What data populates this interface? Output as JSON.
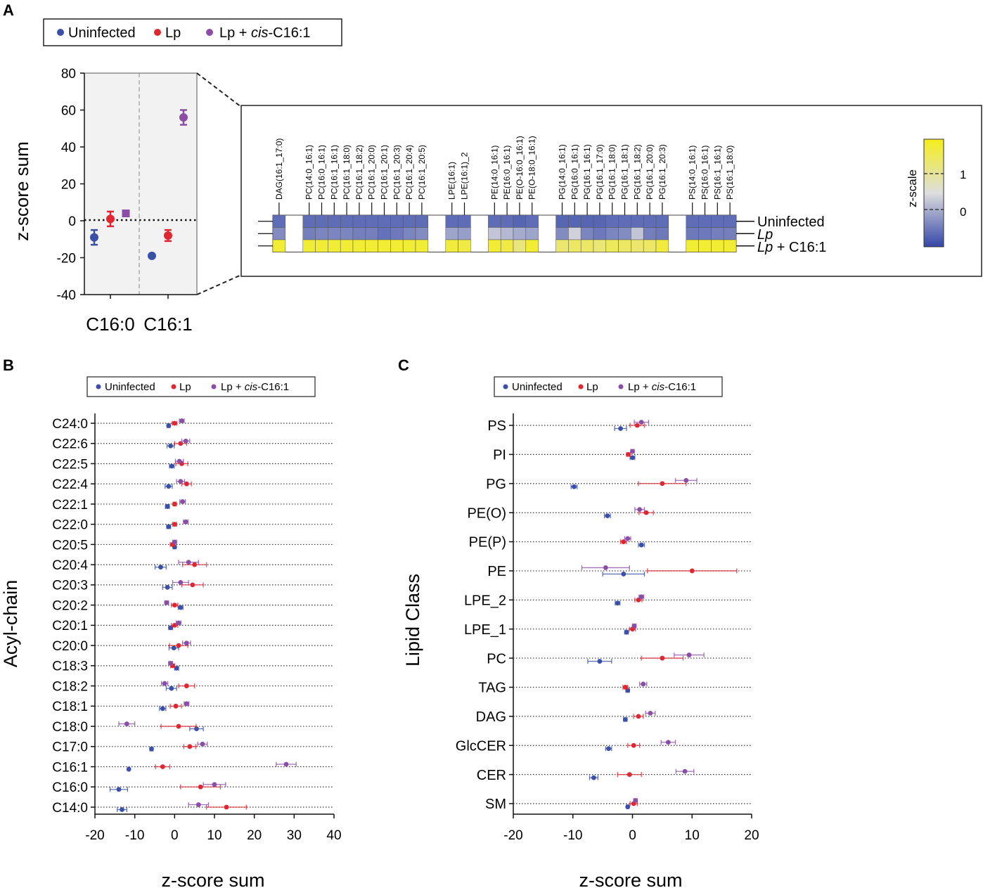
{
  "colors": {
    "uninfected": "#3a50a8",
    "lp": "#e02630",
    "lp_cis": "#8b4ea6",
    "hm_low": "#3446a8",
    "hm_mid": "#dedede",
    "hm_high": "#f4ee1c"
  },
  "panel_labels": {
    "a": "A",
    "b": "B",
    "c": "C"
  },
  "legend": {
    "uninfected": "Uninfected",
    "lp": "Lp",
    "lp_cis_prefix": "Lp + ",
    "lp_cis_italic": "cis",
    "lp_cis_suffix": "-C16:1"
  },
  "chart_data": [
    {
      "id": "A-dot",
      "type": "scatter",
      "ylabel": "z-score sum",
      "ylim": [
        -40,
        80
      ],
      "yticks": [
        "80",
        "60",
        "40",
        "20",
        "0",
        "-20",
        "-40"
      ],
      "categories": [
        "C16:0",
        "C16:1"
      ],
      "series": [
        {
          "name": "Uninfected",
          "values": [
            -9,
            -19
          ],
          "errors": [
            4,
            1
          ]
        },
        {
          "name": "Lp",
          "values": [
            1,
            -8
          ],
          "errors": [
            4,
            3
          ]
        },
        {
          "name": "Lp + cis-C16:1",
          "values": [
            4,
            56
          ],
          "errors": [
            1,
            4
          ],
          "marker": [
            "square",
            "circle"
          ]
        }
      ]
    },
    {
      "id": "A-heatmap",
      "type": "heatmap",
      "rows": [
        "Uninfected",
        "Lp",
        "Lp + C16:1"
      ],
      "row_label_parts": [
        [
          "",
          "Uninfected",
          ""
        ],
        [
          "",
          "Lp",
          ""
        ],
        [
          "",
          "Lp",
          " + C16:1"
        ]
      ],
      "groups": [
        [
          "DAG(16:1_17:0)"
        ],
        [
          "PC(14:0_16:1)",
          "PC(16:0_16:1)",
          "PC(16:1_16:1)",
          "PC(16:1_18:0)",
          "PC(16:1_18:2)",
          "PC(16:1_20:0)",
          "PC(16:1_20:1)",
          "PC(16:1_20:3)",
          "PC(16:1_20:4)",
          "PC(16:1_20:5)"
        ],
        [
          "LPE(16:1)",
          "LPE(16:1)_2"
        ],
        [
          "PE(14:0_16:1)",
          "PE(16:0_16:1)",
          "PE(O-16:0_16:1)",
          "PE(O-18:0_16:1)"
        ],
        [
          "PG(14:0_16:1)",
          "PG(16:0_16:1)",
          "PG(16:1_16:1)",
          "PG(16:1_17:0)",
          "PG(16:1_18:0)",
          "PG(16:1_18:1)",
          "PG(16:1_18:2)",
          "PG(16:1_20:0)",
          "PG(16:1_20:3)"
        ],
        [
          "PS(14:0_16:1)",
          "PS(16:0_16:1)",
          "PS(16:1_16:1)",
          "PS(16:1_18:0)"
        ]
      ],
      "values": [
        [
          [
            -0.9
          ],
          [
            -0.9,
            -0.9,
            -0.9,
            -0.9,
            -0.9,
            -0.9,
            -0.9,
            -0.9,
            -0.9,
            -0.9
          ],
          [
            -0.9,
            -0.9
          ],
          [
            -0.9,
            -0.9,
            -0.95,
            -0.9
          ],
          [
            -0.95,
            -0.95,
            -0.95,
            -0.95,
            -0.9,
            -0.9,
            -0.9,
            -0.9,
            -0.9
          ],
          [
            -0.9,
            -0.9,
            -0.9,
            -0.9
          ]
        ],
        [
          [
            -0.65
          ],
          [
            -0.75,
            -0.7,
            -0.7,
            -0.7,
            -0.75,
            -0.75,
            -0.85,
            -0.8,
            -0.7,
            -0.65
          ],
          [
            -0.45,
            -0.5
          ],
          [
            -0.2,
            -0.3,
            -0.4,
            -0.45
          ],
          [
            -0.65,
            -0.1,
            -0.7,
            -0.8,
            -0.7,
            -0.65,
            -0.2,
            -0.75,
            -0.8
          ],
          [
            -0.8,
            -0.8,
            -0.75,
            -0.75
          ]
        ],
        [
          [
            1.05
          ],
          [
            1.05,
            1.05,
            1.05,
            1.05,
            1.05,
            1.05,
            1.05,
            1.05,
            1.05,
            1.05
          ],
          [
            1.0,
            0.95
          ],
          [
            1.05,
            0.95,
            0.6,
            1.05
          ],
          [
            0.7,
            0.75,
            0.75,
            0.65,
            0.8,
            0.75,
            0.7,
            0.75,
            1.0
          ],
          [
            1.05,
            1.05,
            1.05,
            1.05
          ]
        ]
      ],
      "colorbar": {
        "label": "z-scale",
        "ticks": [
          "1",
          "0"
        ],
        "range": [
          -1.2,
          1.2
        ]
      }
    },
    {
      "id": "B",
      "type": "scatter",
      "orientation": "horizontal",
      "xlabel": "z-score sum",
      "ylabel": "Acyl-chain",
      "xlim": [
        -20,
        40
      ],
      "xticks": [
        "-20",
        "-10",
        "0",
        "10",
        "20",
        "30",
        "40"
      ],
      "categories": [
        "C24:0",
        "C22:6",
        "C22:5",
        "C22:4",
        "C22:1",
        "C22:0",
        "C20:5",
        "C20:4",
        "C20:3",
        "C20:2",
        "C20:1",
        "C20:0",
        "C18:3",
        "C18:2",
        "C18:1",
        "C18:0",
        "C17:0",
        "C16:1",
        "C16:0",
        "C14:0"
      ],
      "series": [
        {
          "name": "Uninfected",
          "values": [
            -1.5,
            -1,
            -0.7,
            -1.5,
            -1.8,
            -1.5,
            0,
            -3.5,
            -1.8,
            1.5,
            -1,
            -0.2,
            0.5,
            -0.8,
            -3,
            5.5,
            -5.8,
            -11.5,
            -14,
            -13.2
          ],
          "errors": [
            0.4,
            0.9,
            0.6,
            0.9,
            0.5,
            0.5,
            0.4,
            1.4,
            1.2,
            0.6,
            0.5,
            1.2,
            0.5,
            1.3,
            0.8,
            1.7,
            0.4,
            0.2,
            2.2,
            1.2
          ]
        },
        {
          "name": "Lp",
          "values": [
            0,
            1.5,
            1.8,
            3,
            0,
            0,
            -0.5,
            5,
            4.5,
            0,
            0,
            1,
            -0.5,
            3,
            0.3,
            1,
            3.8,
            -3,
            6.5,
            13
          ],
          "errors": [
            0.6,
            1.5,
            1.5,
            1.2,
            0.4,
            0.5,
            0.6,
            3,
            2.7,
            0.8,
            0.8,
            2.3,
            0.5,
            2,
            1.4,
            4.4,
            1.5,
            1.8,
            5,
            5
          ]
        },
        {
          "name": "Lp + cis-C16:1",
          "values": [
            1.8,
            2.8,
            1.2,
            1.5,
            2,
            2.8,
            0,
            3.5,
            1.5,
            -2,
            1,
            3,
            -1,
            -2.5,
            3,
            -12,
            7,
            28,
            10,
            6
          ],
          "errors": [
            0.6,
            1,
            1,
            1,
            0.7,
            0.6,
            0.5,
            2.5,
            2,
            0.5,
            0.6,
            1,
            0.5,
            0.8,
            0.6,
            2,
            1.2,
            2.5,
            2.8,
            2.5
          ]
        }
      ]
    },
    {
      "id": "C",
      "type": "scatter",
      "orientation": "horizontal",
      "xlabel": "z-score sum",
      "ylabel": "Lipid Class",
      "xlim": [
        -20,
        20
      ],
      "xticks": [
        "-20",
        "-10",
        "0",
        "10",
        "20"
      ],
      "categories": [
        "PS",
        "PI",
        "PG",
        "PE(O)",
        "PE(P)",
        "PE",
        "LPE_2",
        "LPE_1",
        "PC",
        "TAG",
        "DAG",
        "GlcCER",
        "CER",
        "SM"
      ],
      "series": [
        {
          "name": "Uninfected",
          "values": [
            -2,
            0,
            -9.8,
            -4.2,
            1.5,
            -1.5,
            -2.5,
            -1,
            -5.5,
            -0.8,
            -1.2,
            -4,
            -6.5,
            -0.8
          ],
          "errors": [
            1,
            0.4,
            0.5,
            0.5,
            0.5,
            3.5,
            0.4,
            0.3,
            2,
            0.3,
            0.3,
            0.5,
            0.7,
            0.2
          ]
        },
        {
          "name": "Lp",
          "values": [
            0.8,
            -0.7,
            5,
            2.3,
            -1.5,
            10,
            1,
            0,
            5,
            -1.2,
            1,
            0.2,
            -0.5,
            0.2
          ],
          "errors": [
            1.2,
            0.3,
            4,
            1.2,
            0.5,
            7.5,
            0.6,
            0.5,
            3.5,
            0.4,
            0.8,
            1,
            2,
            0.6
          ]
        },
        {
          "name": "Lp + cis-C16:1",
          "values": [
            1.5,
            0,
            9,
            1.2,
            -0.8,
            -4.5,
            1.5,
            0.3,
            9.5,
            1.8,
            3,
            6,
            8.8,
            0.5
          ],
          "errors": [
            1.2,
            0.3,
            1.8,
            0.8,
            0.5,
            4,
            0.4,
            0.3,
            2.5,
            0.6,
            0.8,
            1.2,
            1.5,
            0.3
          ]
        }
      ]
    }
  ]
}
